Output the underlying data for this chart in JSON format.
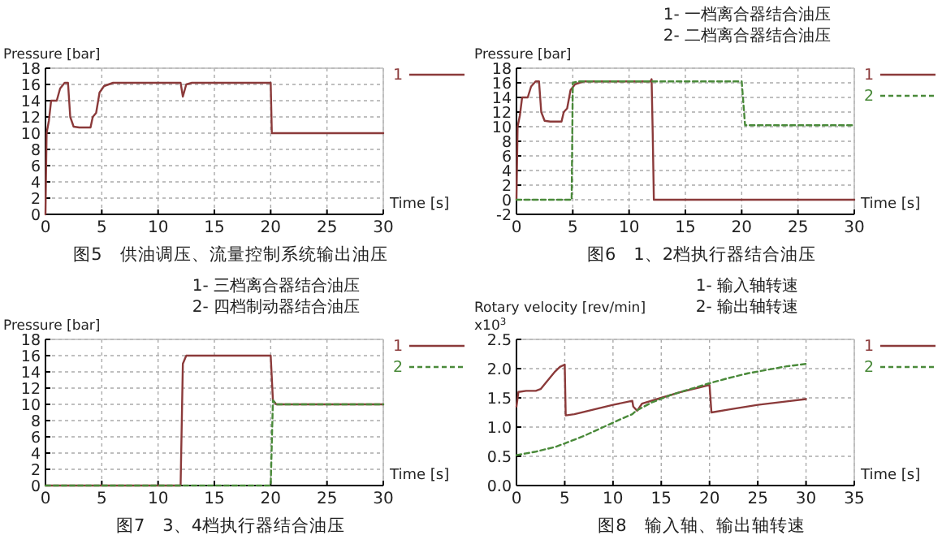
{
  "chart_data": [
    {
      "type": "line",
      "title": "图5　供油调压、流量控制系统输出油压",
      "ylabel": "Pressure [bar]",
      "xlabel": "Time [s]",
      "xlim": [
        0,
        30
      ],
      "xticks": [
        0,
        5,
        10,
        15,
        20,
        25,
        30
      ],
      "ylim": [
        0,
        18
      ],
      "yticks": [
        0,
        2,
        4,
        6,
        8,
        10,
        12,
        14,
        16,
        18
      ],
      "grid": true,
      "legend": "right",
      "series": [
        {
          "name": "1",
          "color": "#8b3a3a",
          "line_style": "solid",
          "x": [
            0,
            0.1,
            0.3,
            0.5,
            1,
            1.3,
            1.7,
            2,
            2.2,
            2.5,
            3,
            4,
            4.2,
            4.5,
            4.8,
            5.2,
            6,
            12,
            12.2,
            12.5,
            13,
            20,
            20.1,
            30
          ],
          "values": [
            0,
            10,
            11.5,
            14,
            14,
            15.5,
            16.2,
            16.2,
            12,
            10.8,
            10.7,
            10.7,
            12,
            12.5,
            15,
            15.8,
            16.2,
            16.2,
            14.5,
            16,
            16.2,
            16.2,
            10,
            10
          ]
        }
      ]
    },
    {
      "type": "line",
      "title": "图6　1、2档执行器结合油压",
      "annotations": [
        "1-  一档离合器结合油压",
        "2-  二档离合器结合油压"
      ],
      "ylabel": "Pressure [bar]",
      "xlabel": "Time [s]",
      "xlim": [
        0,
        30
      ],
      "xticks": [
        0,
        5,
        10,
        15,
        20,
        25,
        30
      ],
      "ylim": [
        -2,
        18
      ],
      "yticks": [
        -2,
        0,
        2,
        4,
        6,
        8,
        10,
        12,
        14,
        16,
        18
      ],
      "grid": true,
      "legend": "right",
      "series": [
        {
          "name": "1",
          "color": "#8b3a3a",
          "line_style": "solid",
          "x": [
            0,
            0.1,
            0.3,
            0.5,
            1,
            1.3,
            1.7,
            2,
            2.2,
            2.5,
            3,
            4,
            4.2,
            4.5,
            4.8,
            5.2,
            6,
            11.9,
            12,
            12.1,
            12.2,
            30
          ],
          "values": [
            0,
            10,
            11.5,
            14,
            14,
            15.5,
            16.2,
            16.2,
            12,
            10.8,
            10.7,
            10.7,
            12,
            12.5,
            15,
            15.8,
            16.2,
            16.2,
            16.5,
            9,
            0,
            0
          ]
        },
        {
          "name": "2",
          "color": "#4a8a3a",
          "line_style": "dashed",
          "x": [
            0,
            4.9,
            5,
            5.5,
            20,
            20.3,
            30
          ],
          "values": [
            0,
            0,
            16,
            16.2,
            16.2,
            10.2,
            10.2
          ]
        }
      ]
    },
    {
      "type": "line",
      "title": "图7　3、4档执行器结合油压",
      "annotations": [
        "1-  三档离合器结合油压",
        "2-  四档制动器结合油压"
      ],
      "ylabel": "Pressure [bar]",
      "xlabel": "Time [s]",
      "xlim": [
        0,
        30
      ],
      "xticks": [
        0,
        5,
        10,
        15,
        20,
        25,
        30
      ],
      "ylim": [
        0,
        18
      ],
      "yticks": [
        0,
        2,
        4,
        6,
        8,
        10,
        12,
        14,
        16,
        18
      ],
      "grid": true,
      "legend": "right",
      "series": [
        {
          "name": "1",
          "color": "#8b3a3a",
          "line_style": "solid",
          "x": [
            0,
            12,
            12.2,
            12.5,
            20,
            20.2,
            20.5,
            30
          ],
          "values": [
            0,
            0,
            15,
            16,
            16,
            10.5,
            10,
            10
          ]
        },
        {
          "name": "2",
          "color": "#4a8a3a",
          "line_style": "dashed",
          "x": [
            0,
            20,
            20.2,
            20.5,
            30
          ],
          "values": [
            0,
            0,
            10.5,
            10,
            10
          ]
        }
      ]
    },
    {
      "type": "line",
      "title": "图8　输入轴、输出轴转速",
      "annotations": [
        "1-  输入轴转速",
        "2-  输出轴转速"
      ],
      "ylabel": "Rotary velocity [rev/min]\nx10$^{3}$",
      "xlabel": "Time [s]",
      "xlim": [
        0,
        35
      ],
      "xticks": [
        0,
        5,
        10,
        15,
        20,
        25,
        30,
        35
      ],
      "ylim": [
        0,
        2.5
      ],
      "yticks": [
        {
          "value": 0,
          "label": "0.0"
        },
        0.5,
        {
          "value": 1,
          "label": "1.0"
        },
        1.5,
        {
          "value": 2,
          "label": "2.0"
        },
        2.5
      ],
      "grid": true,
      "legend": "right",
      "series": [
        {
          "name": "1",
          "color": "#8b3a3a",
          "line_style": "solid",
          "x": [
            0,
            0.2,
            1,
            2,
            2.5,
            3,
            3.5,
            4,
            4.5,
            5,
            5.1,
            6,
            8,
            10,
            12,
            12.1,
            12.5,
            13,
            15,
            17,
            19,
            20,
            20.2,
            22,
            25,
            28,
            30
          ],
          "values": [
            1.35,
            1.6,
            1.62,
            1.62,
            1.65,
            1.75,
            1.85,
            1.95,
            2.03,
            2.07,
            1.2,
            1.22,
            1.3,
            1.38,
            1.45,
            1.35,
            1.28,
            1.4,
            1.5,
            1.6,
            1.68,
            1.72,
            1.25,
            1.3,
            1.38,
            1.44,
            1.48
          ]
        },
        {
          "name": "2",
          "color": "#4a8a3a",
          "line_style": "dashed",
          "x": [
            0,
            1,
            2,
            3,
            4,
            5,
            7,
            9,
            11,
            12,
            12.4,
            14,
            16,
            18,
            20,
            22,
            24,
            26,
            28,
            30
          ],
          "values": [
            0.52,
            0.55,
            0.58,
            0.62,
            0.66,
            0.72,
            0.85,
            1.0,
            1.15,
            1.22,
            1.28,
            1.42,
            1.55,
            1.65,
            1.75,
            1.84,
            1.92,
            1.98,
            2.04,
            2.08
          ]
        }
      ]
    }
  ]
}
